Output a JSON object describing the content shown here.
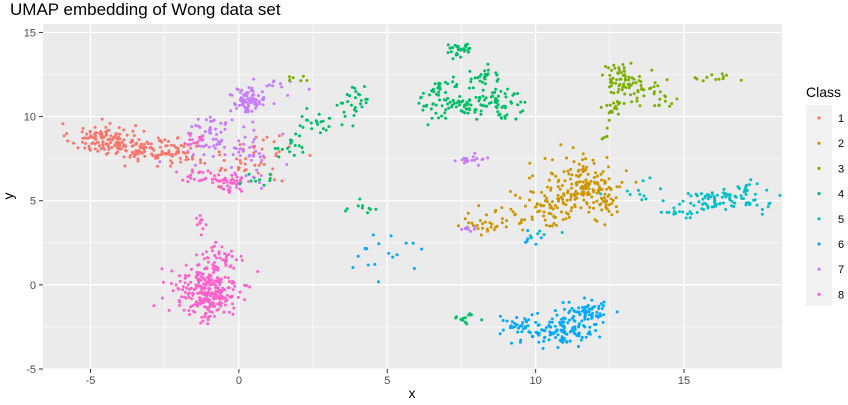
{
  "chart_data": {
    "type": "scatter",
    "title": "UMAP embedding of Wong data set",
    "xlabel": "x",
    "ylabel": "y",
    "xlim": [
      -6.6,
      18.3
    ],
    "ylim": [
      -5.0,
      15.5
    ],
    "xticks": [
      -5,
      0,
      5,
      10,
      15
    ],
    "yticks": [
      -5,
      0,
      5,
      10,
      15
    ],
    "grid": true,
    "legend": {
      "title": "Class",
      "position": "right"
    },
    "series": [
      {
        "name": "1",
        "color": "#F8766D",
        "clusters": [
          {
            "cx": -4.6,
            "cy": 8.7,
            "sx": 0.55,
            "sy": 0.45,
            "n": 110
          },
          {
            "cx": -3.2,
            "cy": 8.1,
            "sx": 0.55,
            "sy": 0.4,
            "n": 80
          },
          {
            "cx": -2.0,
            "cy": 7.8,
            "sx": 0.4,
            "sy": 0.35,
            "n": 40
          },
          {
            "cx": 0.2,
            "cy": 7.2,
            "sx": 0.6,
            "sy": 0.6,
            "n": 35
          },
          {
            "cx": 1.3,
            "cy": 8.2,
            "sx": 0.5,
            "sy": 0.5,
            "n": 12
          }
        ]
      },
      {
        "name": "2",
        "color": "#CD9600",
        "clusters": [
          {
            "cx": 11.6,
            "cy": 5.8,
            "sx": 0.7,
            "sy": 0.9,
            "n": 170
          },
          {
            "cx": 10.5,
            "cy": 4.8,
            "sx": 0.5,
            "sy": 0.7,
            "n": 40
          },
          {
            "cx": 9.0,
            "cy": 3.9,
            "sx": 0.5,
            "sy": 0.45,
            "n": 30
          },
          {
            "cx": 8.0,
            "cy": 3.5,
            "sx": 0.4,
            "sy": 0.25,
            "n": 15
          },
          {
            "cx": 12.4,
            "cy": 4.6,
            "sx": 0.3,
            "sy": 0.5,
            "n": 20
          }
        ]
      },
      {
        "name": "3",
        "color": "#7CAE00",
        "clusters": [
          {
            "cx": 12.9,
            "cy": 12.3,
            "sx": 0.35,
            "sy": 0.45,
            "n": 60
          },
          {
            "cx": 13.8,
            "cy": 11.3,
            "sx": 0.45,
            "sy": 0.35,
            "n": 35
          },
          {
            "cx": 12.6,
            "cy": 10.4,
            "sx": 0.25,
            "sy": 0.3,
            "n": 15
          },
          {
            "cx": 16.0,
            "cy": 12.4,
            "sx": 0.4,
            "sy": 0.2,
            "n": 12
          },
          {
            "cx": 12.3,
            "cy": 9.0,
            "sx": 0.15,
            "sy": 0.5,
            "n": 6
          },
          {
            "cx": 2.2,
            "cy": 12.3,
            "sx": 0.3,
            "sy": 0.15,
            "n": 6
          }
        ]
      },
      {
        "name": "4",
        "color": "#00BE67",
        "clusters": [
          {
            "cx": 7.3,
            "cy": 11.0,
            "sx": 0.6,
            "sy": 0.6,
            "n": 100
          },
          {
            "cx": 8.8,
            "cy": 10.8,
            "sx": 0.45,
            "sy": 0.55,
            "n": 50
          },
          {
            "cx": 7.5,
            "cy": 14.0,
            "sx": 0.3,
            "sy": 0.2,
            "n": 30
          },
          {
            "cx": 8.3,
            "cy": 12.4,
            "sx": 0.25,
            "sy": 0.25,
            "n": 22
          },
          {
            "cx": 3.9,
            "cy": 11.0,
            "sx": 0.3,
            "sy": 0.5,
            "n": 25
          },
          {
            "cx": 2.8,
            "cy": 9.5,
            "sx": 0.4,
            "sy": 0.4,
            "n": 25
          },
          {
            "cx": 1.6,
            "cy": 8.0,
            "sx": 0.4,
            "sy": 0.35,
            "n": 15
          },
          {
            "cx": 0.6,
            "cy": 6.3,
            "sx": 0.3,
            "sy": 0.25,
            "n": 10
          },
          {
            "cx": 4.2,
            "cy": 4.6,
            "sx": 0.3,
            "sy": 0.3,
            "n": 10
          },
          {
            "cx": 7.6,
            "cy": -2.0,
            "sx": 0.2,
            "sy": 0.12,
            "n": 12
          }
        ]
      },
      {
        "name": "5",
        "color": "#00BFC4",
        "clusters": [
          {
            "cx": 16.3,
            "cy": 5.0,
            "sx": 0.75,
            "sy": 0.35,
            "n": 85
          },
          {
            "cx": 14.9,
            "cy": 4.3,
            "sx": 0.3,
            "sy": 0.12,
            "n": 12
          },
          {
            "cx": 17.2,
            "cy": 5.8,
            "sx": 0.2,
            "sy": 0.2,
            "n": 10
          },
          {
            "cx": 13.3,
            "cy": 5.5,
            "sx": 0.5,
            "sy": 0.4,
            "n": 12
          },
          {
            "cx": 10.3,
            "cy": 3.0,
            "sx": 0.3,
            "sy": 0.3,
            "n": 5
          }
        ]
      },
      {
        "name": "6",
        "color": "#00A9FF",
        "clusters": [
          {
            "cx": 10.8,
            "cy": -2.7,
            "sx": 0.65,
            "sy": 0.45,
            "n": 120
          },
          {
            "cx": 11.7,
            "cy": -1.6,
            "sx": 0.4,
            "sy": 0.35,
            "n": 60
          },
          {
            "cx": 9.4,
            "cy": -2.4,
            "sx": 0.35,
            "sy": 0.25,
            "n": 25
          },
          {
            "cx": 5.0,
            "cy": 2.0,
            "sx": 0.6,
            "sy": 0.6,
            "n": 18
          },
          {
            "cx": 9.8,
            "cy": 2.6,
            "sx": 0.2,
            "sy": 0.2,
            "n": 8
          }
        ]
      },
      {
        "name": "7",
        "color": "#C77CFF",
        "clusters": [
          {
            "cx": 0.3,
            "cy": 10.9,
            "sx": 0.3,
            "sy": 0.4,
            "n": 80
          },
          {
            "cx": -0.9,
            "cy": 9.0,
            "sx": 0.45,
            "sy": 0.6,
            "n": 50
          },
          {
            "cx": 0.4,
            "cy": 7.8,
            "sx": 0.45,
            "sy": 0.8,
            "n": 40
          },
          {
            "cx": 1.3,
            "cy": 11.5,
            "sx": 0.35,
            "sy": 0.3,
            "n": 12
          },
          {
            "cx": 7.7,
            "cy": 7.4,
            "sx": 0.3,
            "sy": 0.15,
            "n": 18
          },
          {
            "cx": 7.6,
            "cy": 3.3,
            "sx": 0.2,
            "sy": 0.12,
            "n": 8
          }
        ]
      },
      {
        "name": "8",
        "color": "#FF61CC",
        "clusters": [
          {
            "cx": -1.1,
            "cy": -0.4,
            "sx": 0.55,
            "sy": 0.85,
            "n": 260
          },
          {
            "cx": -0.6,
            "cy": 1.5,
            "sx": 0.35,
            "sy": 0.5,
            "n": 40
          },
          {
            "cx": -1.3,
            "cy": 3.4,
            "sx": 0.12,
            "sy": 0.4,
            "n": 10
          },
          {
            "cx": -0.3,
            "cy": 6.0,
            "sx": 0.4,
            "sy": 0.3,
            "n": 40
          },
          {
            "cx": -1.3,
            "cy": 6.5,
            "sx": 0.35,
            "sy": 0.3,
            "n": 20
          },
          {
            "cx": -1.6,
            "cy": 8.6,
            "sx": 0.3,
            "sy": 0.3,
            "n": 12
          }
        ]
      }
    ]
  }
}
